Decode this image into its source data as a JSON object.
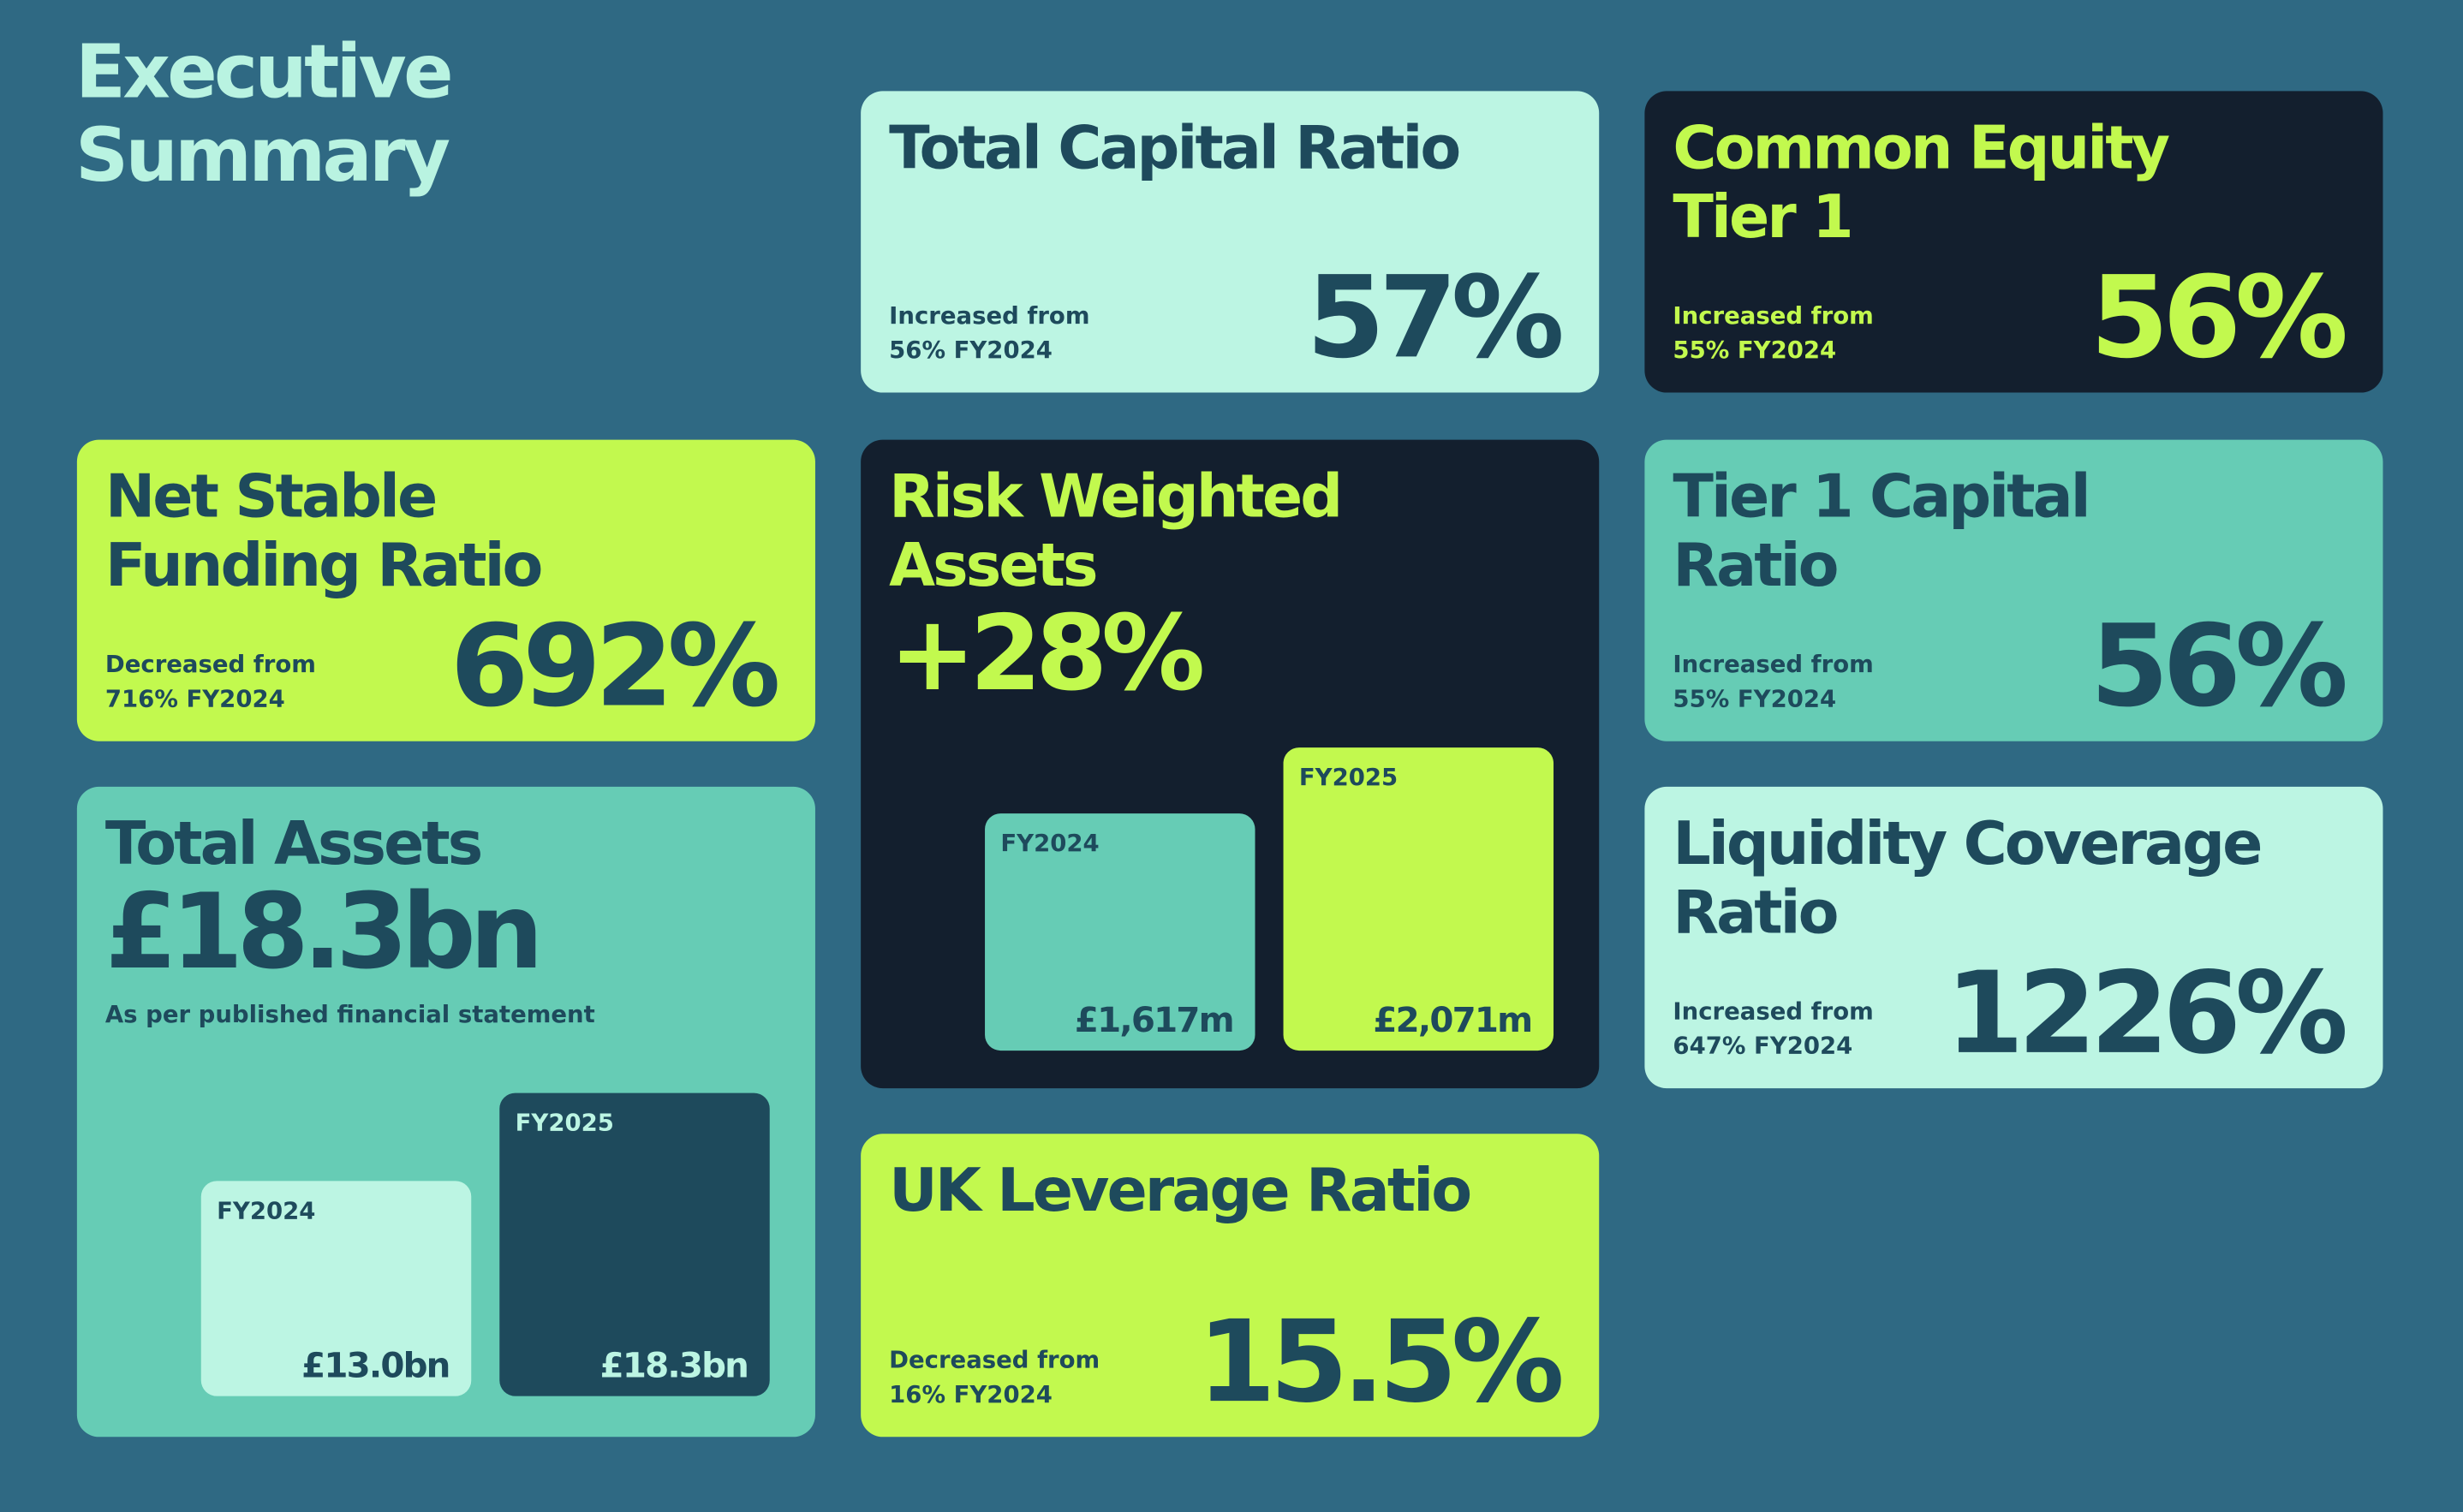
{
  "header": {
    "title": "Executive Summary"
  },
  "cards": [
    {
      "title": "Total Capital Ratio",
      "value": "57%",
      "note": "Increased from 56% FY2024"
    },
    {
      "title": "Common Equity Tier 1",
      "value": "56%",
      "note": "Increased from 55% FY2024"
    },
    {
      "title": "Net Stable Funding Ratio",
      "value": "692%",
      "note": "Decreased from 716% FY2024"
    },
    {
      "title": "Risk Weighted Assets",
      "value": "+28%",
      "bars": [
        {
          "label": "FY2024",
          "value": 1617,
          "value_label": "£1,617m"
        },
        {
          "label": "FY2025",
          "value": 2071,
          "value_label": "£2,071m"
        }
      ]
    },
    {
      "title": "Tier 1 Capital Ratio",
      "value": "56%",
      "note": "Increased from 55% FY2024"
    },
    {
      "title": "Total Assets",
      "value": "£18.3bn",
      "note": "As per published financial statement",
      "bars": [
        {
          "label": "FY2024",
          "value": 13,
          "value_label": "£13.0bn"
        },
        {
          "label": "FY2025",
          "value": 18.3,
          "value_label": "£18.3bn"
        }
      ]
    },
    {
      "title": "Liquidity Coverage Ratio",
      "value": "1226%",
      "note": "Increased from 647% FY2024"
    },
    {
      "title": "UK Leverage Ratio",
      "value": "15.5%",
      "note": "Decreased from 16% FY2024"
    }
  ]
}
